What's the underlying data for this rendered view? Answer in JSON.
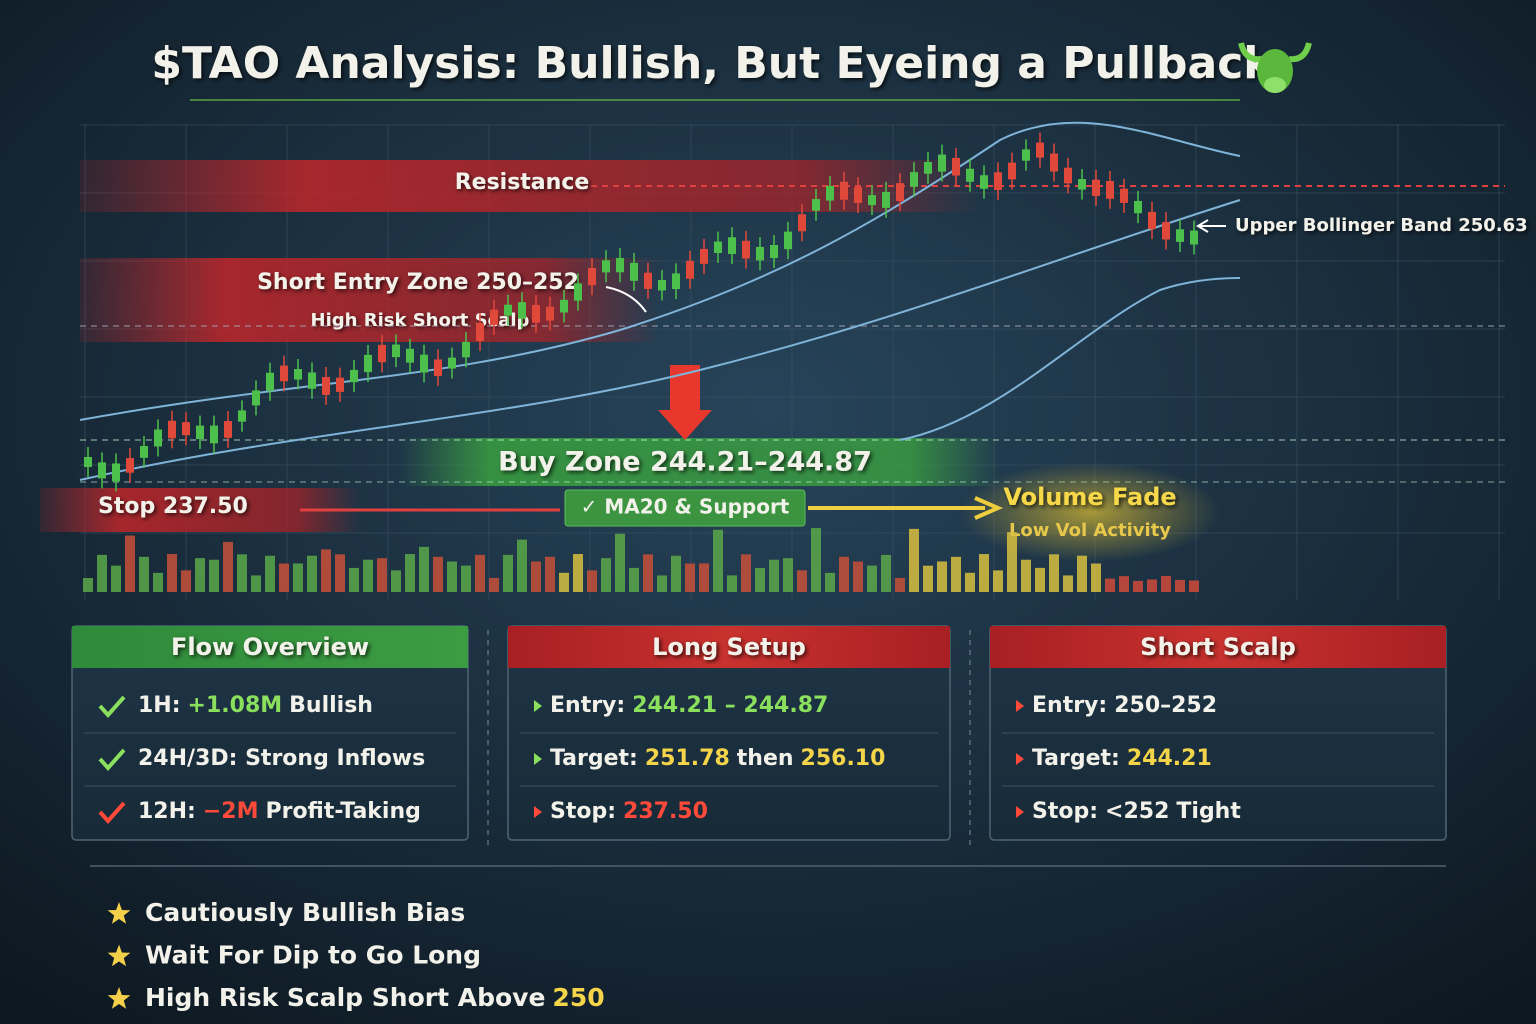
{
  "title": "$TAO Analysis: Bullish, But Eyeing a Pullback",
  "annotations": {
    "resistance": "Resistance",
    "short_entry": "Short Entry Zone 250–252",
    "short_entry_note": "High Risk Short Scalp",
    "upper_band": "Upper Bollinger Band 250.63",
    "buy_zone": "Buy Zone 244.21–244.87",
    "stop": "Stop 237.50",
    "ma20": "✓ MA20 & Support",
    "volume_fade": "Volume Fade",
    "volume_note": "Low Vol Activity"
  },
  "panels": [
    {
      "title": "Flow Overview",
      "tone": "green",
      "bullet": "check",
      "items": [
        {
          "icon_tone": "green",
          "parts": [
            {
              "text": "1H:"
            },
            {
              "text": "+1.08M",
              "tone": "green"
            },
            {
              "text": "Bullish"
            }
          ]
        },
        {
          "icon_tone": "green",
          "parts": [
            {
              "text": "24H/3D: Strong Inflows"
            }
          ]
        },
        {
          "icon_tone": "red",
          "parts": [
            {
              "text": "12H:"
            },
            {
              "text": "−2M",
              "tone": "red"
            },
            {
              "text": "Profit-Taking"
            }
          ]
        }
      ]
    },
    {
      "title": "Long Setup",
      "tone": "red",
      "bullet": "triangle",
      "items": [
        {
          "icon_tone": "green",
          "parts": [
            {
              "text": "Entry:"
            },
            {
              "text": "244.21 – 244.87",
              "tone": "green"
            }
          ]
        },
        {
          "icon_tone": "green",
          "parts": [
            {
              "text": "Target:"
            },
            {
              "text": "251.78",
              "tone": "yellow"
            },
            {
              "text": "then"
            },
            {
              "text": "256.10",
              "tone": "yellow"
            }
          ]
        },
        {
          "icon_tone": "red",
          "parts": [
            {
              "text": "Stop:"
            },
            {
              "text": "237.50",
              "tone": "red"
            }
          ]
        }
      ]
    },
    {
      "title": "Short Scalp",
      "tone": "red",
      "bullet": "triangle",
      "items": [
        {
          "icon_tone": "red",
          "parts": [
            {
              "text": "Entry:"
            },
            {
              "text": "250–252"
            }
          ]
        },
        {
          "icon_tone": "red",
          "parts": [
            {
              "text": "Target:"
            },
            {
              "text": "244.21",
              "tone": "yellow"
            }
          ]
        },
        {
          "icon_tone": "red",
          "parts": [
            {
              "text": "Stop:"
            },
            {
              "text": "<252"
            },
            {
              "text": "Tight"
            }
          ]
        }
      ]
    }
  ],
  "takeaways": [
    {
      "parts": [
        {
          "text": "Cautiously Bullish Bias"
        }
      ]
    },
    {
      "parts": [
        {
          "text": "Wait For Dip to Go Long"
        }
      ]
    },
    {
      "parts": [
        {
          "text": "High Risk Scalp Short Above"
        },
        {
          "text": "250",
          "tone": "yellow"
        }
      ]
    }
  ]
}
